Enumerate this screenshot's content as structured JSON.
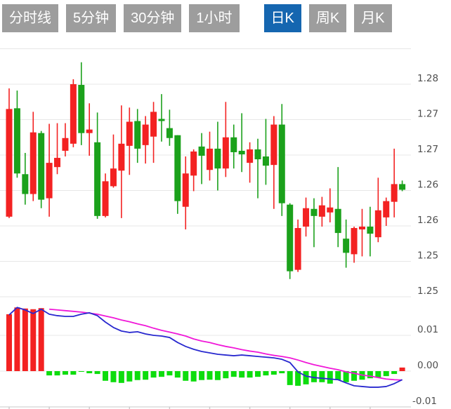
{
  "toolbar": {
    "tabs": [
      {
        "id": "tab-timeline",
        "label": "分时线",
        "active": false
      },
      {
        "id": "tab-5min",
        "label": "5分钟",
        "active": false
      },
      {
        "id": "tab-30min",
        "label": "30分钟",
        "active": false
      },
      {
        "id": "tab-1hour",
        "label": "1小时",
        "active": false
      },
      {
        "id": "tab-daily",
        "label": "日K",
        "active": true
      },
      {
        "id": "tab-weekly",
        "label": "周K",
        "active": false
      },
      {
        "id": "tab-monthly",
        "label": "月K",
        "active": false
      }
    ]
  },
  "colors": {
    "up": "#f32222",
    "down": "#1ba11b",
    "macd_up": "#f32222",
    "macd_down": "#0ddc0d",
    "dif_line": "#2828cf",
    "dea_line": "#f018d8",
    "grid": "#e7e7e7",
    "axis": "#c9c9c9",
    "label": "#4f4f4f",
    "tab_active_bg": "#1566b0",
    "tab_bg": "#9d9d9d",
    "tab_text": "#ffffff"
  },
  "chart_data": [
    {
      "type": "candlestick",
      "title": "daily K-line",
      "ylim": [
        1.249,
        1.286
      ],
      "grid": true,
      "legend_position": "none",
      "y_gridlines": [
        {
          "value": 1.285,
          "label": null
        },
        {
          "value": 1.28,
          "label": "1.28"
        },
        {
          "value": 1.275,
          "label": "1.27"
        },
        {
          "value": 1.27,
          "label": "1.27"
        },
        {
          "value": 1.265,
          "label": "1.26"
        },
        {
          "value": 1.26,
          "label": "1.26"
        },
        {
          "value": 1.255,
          "label": "1.25"
        },
        {
          "value": 1.25,
          "label": "1.25"
        }
      ],
      "candles_format": [
        "open",
        "high",
        "low",
        "close"
      ],
      "candles": [
        [
          1.2613,
          1.2794,
          1.2611,
          1.2765
        ],
        [
          1.2766,
          1.2791,
          1.2668,
          1.2674
        ],
        [
          1.2673,
          1.2703,
          1.263,
          1.2645
        ],
        [
          1.2645,
          1.2761,
          1.2635,
          1.2732
        ],
        [
          1.2731,
          1.2734,
          1.2625,
          1.2637
        ],
        [
          1.2639,
          1.2744,
          1.2613,
          1.2689
        ],
        [
          1.2683,
          1.2745,
          1.2673,
          1.2696
        ],
        [
          1.2706,
          1.2745,
          1.2698,
          1.2724
        ],
        [
          1.2716,
          1.2807,
          1.2711,
          1.28
        ],
        [
          1.2799,
          1.2831,
          1.2714,
          1.2731
        ],
        [
          1.2731,
          1.2773,
          1.2699,
          1.2736
        ],
        [
          1.2718,
          1.276,
          1.261,
          1.2614
        ],
        [
          1.2614,
          1.2674,
          1.2612,
          1.2663
        ],
        [
          1.2656,
          1.2729,
          1.2654,
          1.2681
        ],
        [
          1.2678,
          1.277,
          1.2611,
          1.2716
        ],
        [
          1.2713,
          1.2767,
          1.2672,
          1.2747
        ],
        [
          1.2748,
          1.2765,
          1.2689,
          1.2709
        ],
        [
          1.2714,
          1.2755,
          1.2688,
          1.2743
        ],
        [
          1.2726,
          1.2775,
          1.2689,
          1.2761
        ],
        [
          1.2751,
          1.2786,
          1.2719,
          1.2748
        ],
        [
          1.2738,
          1.2764,
          1.2713,
          1.2724
        ],
        [
          1.2728,
          1.2728,
          1.2617,
          1.2635
        ],
        [
          1.2627,
          1.2698,
          1.2595,
          1.2674
        ],
        [
          1.2671,
          1.2708,
          1.2649,
          1.2705
        ],
        [
          1.2712,
          1.2731,
          1.2659,
          1.2699
        ],
        [
          1.2679,
          1.2733,
          1.2664,
          1.2709
        ],
        [
          1.2709,
          1.2747,
          1.265,
          1.2681
        ],
        [
          1.2681,
          1.2775,
          1.2669,
          1.2725
        ],
        [
          1.2725,
          1.2743,
          1.2681,
          1.2704
        ],
        [
          1.2706,
          1.2759,
          1.2676,
          1.2701
        ],
        [
          1.2689,
          1.2718,
          1.2661,
          1.2708
        ],
        [
          1.2708,
          1.2723,
          1.2639,
          1.2694
        ],
        [
          1.2698,
          1.2751,
          1.2658,
          1.2685
        ],
        [
          1.2686,
          1.2755,
          1.2624,
          1.2743
        ],
        [
          1.2743,
          1.2772,
          1.2614,
          1.2632
        ],
        [
          1.263,
          1.2632,
          1.2525,
          1.2536
        ],
        [
          1.2538,
          1.2609,
          1.2535,
          1.2597
        ],
        [
          1.2599,
          1.264,
          1.2585,
          1.2625
        ],
        [
          1.2624,
          1.2639,
          1.257,
          1.2614
        ],
        [
          1.2613,
          1.2641,
          1.2599,
          1.2629
        ],
        [
          1.2619,
          1.2653,
          1.2605,
          1.2626
        ],
        [
          1.2624,
          1.2683,
          1.257,
          1.259
        ],
        [
          1.2582,
          1.2609,
          1.2541,
          1.2562
        ],
        [
          1.256,
          1.2599,
          1.2548,
          1.2597
        ],
        [
          1.2595,
          1.2624,
          1.2557,
          1.2599
        ],
        [
          1.2599,
          1.2627,
          1.2557,
          1.2589
        ],
        [
          1.2584,
          1.2668,
          1.2577,
          1.2622
        ],
        [
          1.2612,
          1.264,
          1.26,
          1.2635
        ],
        [
          1.2634,
          1.2709,
          1.2612,
          1.2659
        ],
        [
          1.2659,
          1.2664,
          1.2649,
          1.2651
        ]
      ]
    },
    {
      "type": "macd",
      "title": "MACD",
      "ylim": [
        -0.011,
        0.018
      ],
      "y_gridlines": [
        {
          "value": 0.01,
          "label": "0.01"
        },
        {
          "value": 0.0,
          "label": "0.00"
        },
        {
          "value": -0.01,
          "label": "-0.01"
        }
      ],
      "histogram": [
        0.0159,
        0.0178,
        0.0175,
        0.0173,
        0.0176,
        -0.0012,
        -0.0012,
        -0.001,
        -0.001,
        -0.0001,
        -0.0006,
        -0.0008,
        -0.0027,
        -0.0031,
        -0.0033,
        -0.0029,
        -0.0025,
        -0.0024,
        -0.0018,
        -0.0016,
        -0.0012,
        -0.0018,
        -0.0027,
        -0.0029,
        -0.0025,
        -0.0024,
        -0.0025,
        -0.002,
        -0.0016,
        -0.0018,
        -0.0018,
        -0.0016,
        -0.0012,
        -0.001,
        -0.0006,
        -0.0039,
        -0.0041,
        -0.0037,
        -0.0031,
        -0.0031,
        -0.0035,
        -0.0025,
        -0.0031,
        -0.0027,
        -0.0024,
        -0.002,
        -0.0018,
        -0.0014,
        -0.0008,
        0.001
      ],
      "dif": [
        0.0157,
        0.0178,
        0.0171,
        0.0161,
        0.0173,
        0.0159,
        0.0155,
        0.0153,
        0.0153,
        0.0159,
        0.0163,
        0.0155,
        0.0137,
        0.0122,
        0.0112,
        0.0108,
        0.011,
        0.0104,
        0.01,
        0.0098,
        0.0094,
        0.008,
        0.0069,
        0.0061,
        0.0055,
        0.0051,
        0.0047,
        0.0045,
        0.0043,
        0.0045,
        0.0043,
        0.0041,
        0.0039,
        0.0037,
        0.0033,
        0.0024,
        -0.0002,
        -0.0014,
        -0.0018,
        -0.002,
        -0.0022,
        -0.0024,
        -0.0033,
        -0.0041,
        -0.0043,
        -0.0045,
        -0.0045,
        -0.0043,
        -0.0035,
        -0.0024
      ],
      "dea": [
        null,
        null,
        null,
        null,
        null,
        0.0173,
        0.0171,
        0.0169,
        0.0167,
        0.0165,
        0.0162,
        0.0159,
        0.0154,
        0.0149,
        0.0143,
        0.0138,
        0.0132,
        0.0127,
        0.012,
        0.0114,
        0.0109,
        0.0104,
        0.0098,
        0.009,
        0.0084,
        0.008,
        0.0074,
        0.0069,
        0.0065,
        0.006,
        0.0056,
        0.0053,
        0.0048,
        0.0044,
        0.0041,
        0.0037,
        0.0031,
        0.0024,
        0.0018,
        0.0013,
        0.0008,
        0.0004,
        -0.0002,
        -0.0006,
        -0.0011,
        -0.0014,
        -0.0018,
        -0.0022,
        -0.0024,
        -0.0025
      ]
    }
  ]
}
